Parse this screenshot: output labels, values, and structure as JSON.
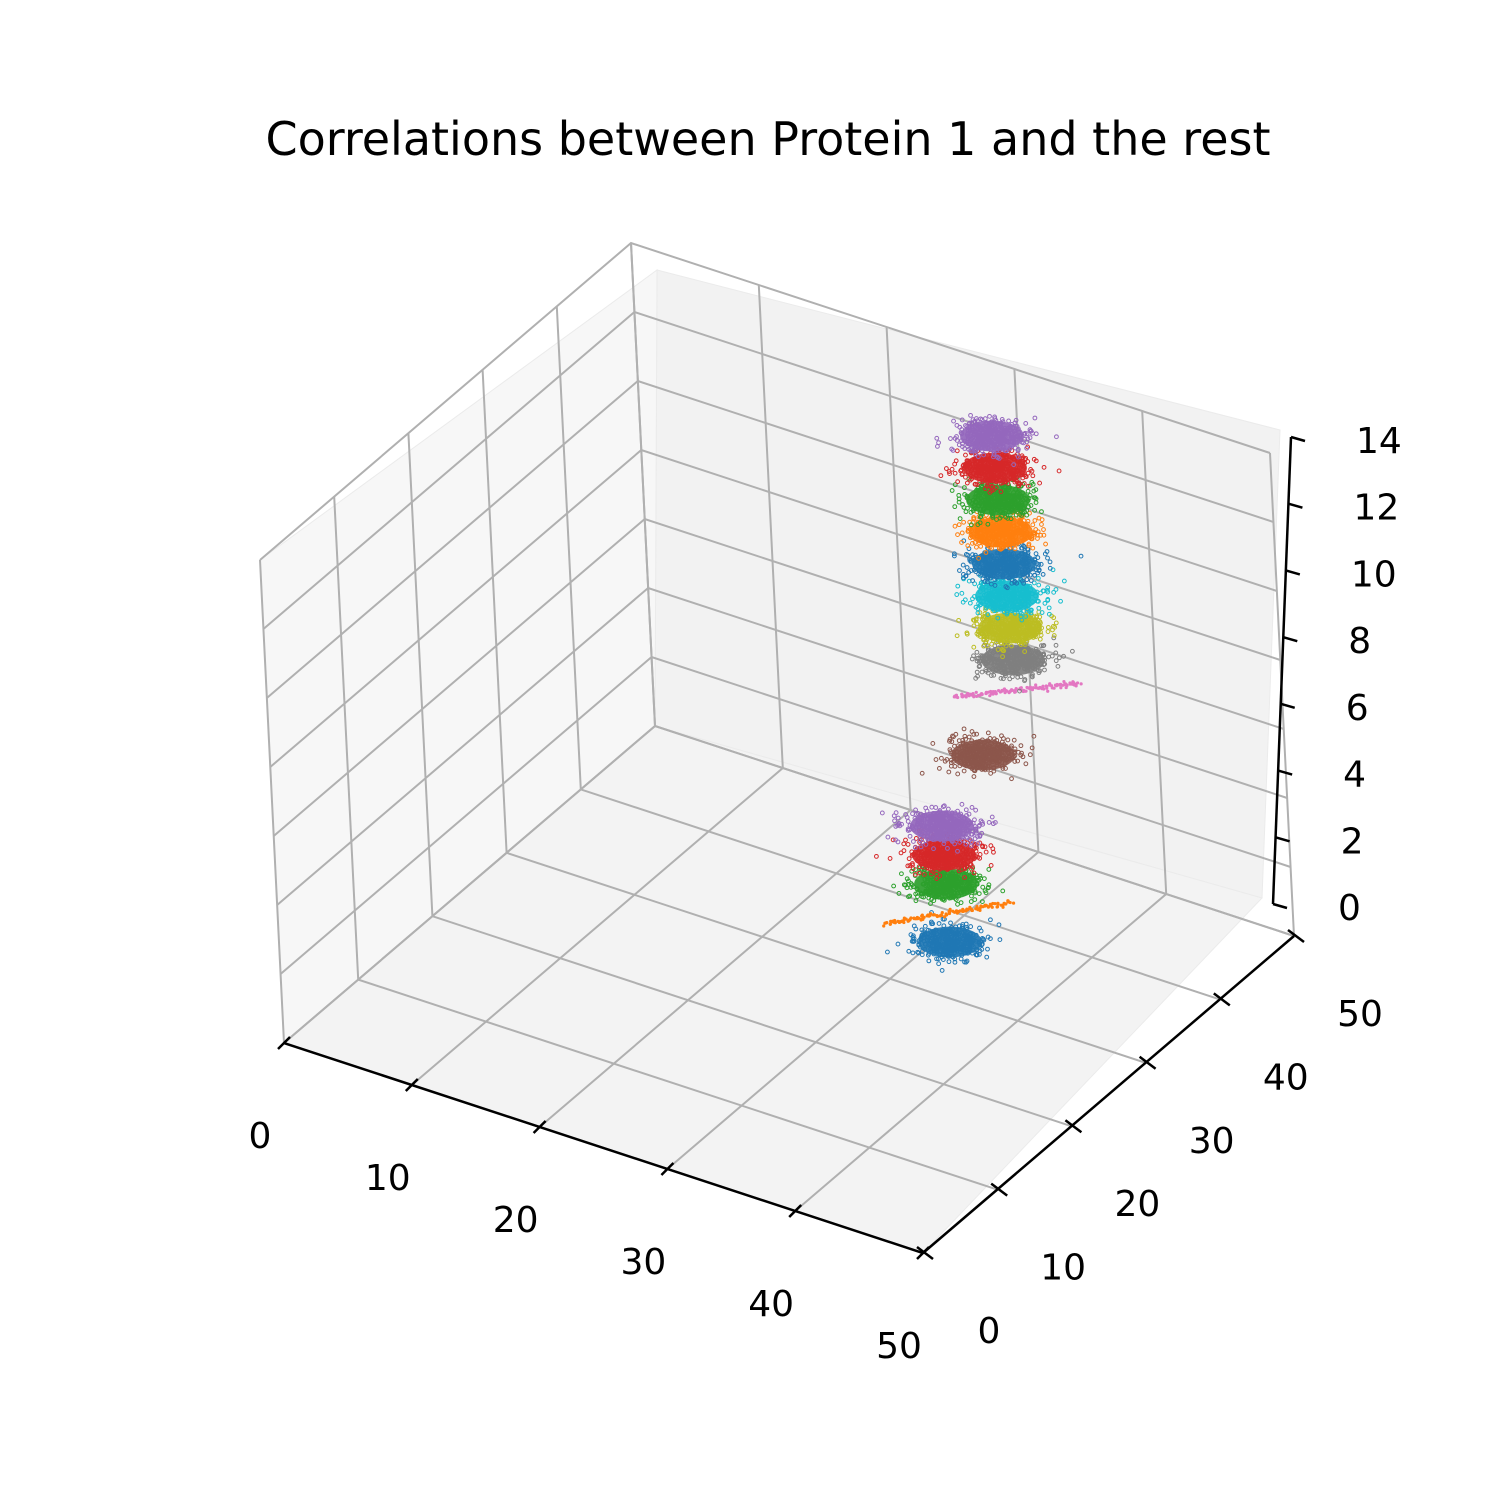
{
  "chart_data": {
    "type": "scatter",
    "title": "Correlations between Protein 1 and the rest",
    "xlabel": "",
    "ylabel": "",
    "zlabel": "",
    "xlim": [
      0,
      50
    ],
    "ylim": [
      0,
      50
    ],
    "zlim": [
      0,
      14
    ],
    "x_ticks": [
      "0",
      "10",
      "20",
      "30",
      "40",
      "50"
    ],
    "y_ticks": [
      "0",
      "10",
      "20",
      "30",
      "40",
      "50"
    ],
    "z_ticks": [
      "0",
      "2",
      "4",
      "6",
      "8",
      "10",
      "12",
      "14"
    ],
    "grid": true,
    "projection": "3d",
    "series": [
      {
        "color": "#1f77b4",
        "z": 0,
        "shape": "cloud"
      },
      {
        "color": "#ff7f0e",
        "z": 1,
        "shape": "line"
      },
      {
        "color": "#2ca02c",
        "z": 2,
        "shape": "cloud"
      },
      {
        "color": "#d62728",
        "z": 3,
        "shape": "cloud"
      },
      {
        "color": "#9467bd",
        "z": 4,
        "shape": "cloud"
      },
      {
        "color": "#8c564b",
        "z": 5,
        "shape": "cloud"
      },
      {
        "color": "#e377c2",
        "z": 6,
        "shape": "line"
      },
      {
        "color": "#7f7f7f",
        "z": 7,
        "shape": "cloud"
      },
      {
        "color": "#bcbd22",
        "z": 8,
        "shape": "cloud"
      },
      {
        "color": "#17becf",
        "z": 9,
        "shape": "cloud"
      },
      {
        "color": "#1f77b4",
        "z": 10,
        "shape": "cloud"
      },
      {
        "color": "#ff7f0e",
        "z": 11,
        "shape": "cloud"
      },
      {
        "color": "#2ca02c",
        "z": 12,
        "shape": "cloud"
      },
      {
        "color": "#d62728",
        "z": 13,
        "shape": "cloud"
      },
      {
        "color": "#9467bd",
        "z": 14,
        "shape": "cloud"
      }
    ]
  }
}
